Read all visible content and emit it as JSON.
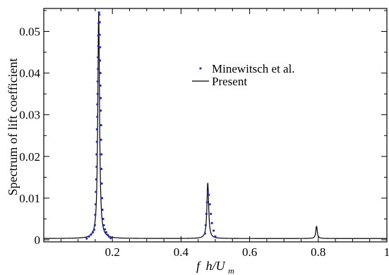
{
  "chart_data": {
    "type": "line",
    "xlabel": {
      "f": "f",
      "h": "h/U",
      "sub": "m"
    },
    "ylabel": "Spectrum of lift coefficient",
    "xlim": [
      0.0,
      1.0
    ],
    "ylim": [
      -0.0005,
      0.0555
    ],
    "x_ticks": [
      0.2,
      0.4,
      0.6,
      0.8,
      1.0
    ],
    "x_tick_labels": [
      "0.2",
      "0.4",
      "0.6",
      "0.8",
      "1"
    ],
    "y_ticks": [
      0,
      0.01,
      0.02,
      0.03,
      0.04,
      0.05
    ],
    "y_tick_labels": [
      "0",
      "0.01",
      "0.02",
      "0.03",
      "0.04",
      "0.05"
    ],
    "grid": false,
    "legend_position": "upper-center-right",
    "series": [
      {
        "name": "Minewitsch et al.",
        "style": "dots",
        "color": "#1f2bd6",
        "points": [
          [
            0.125,
            0.0003
          ],
          [
            0.132,
            0.0008
          ],
          [
            0.138,
            0.0013
          ],
          [
            0.143,
            0.0018
          ],
          [
            0.147,
            0.0024
          ],
          [
            0.149,
            0.0035
          ],
          [
            0.15,
            0.006
          ],
          [
            0.151,
            0.0085
          ],
          [
            0.152,
            0.0115
          ],
          [
            0.153,
            0.0145
          ],
          [
            0.154,
            0.0175
          ],
          [
            0.154,
            0.0205
          ],
          [
            0.155,
            0.0235
          ],
          [
            0.155,
            0.0265
          ],
          [
            0.156,
            0.0295
          ],
          [
            0.156,
            0.0325
          ],
          [
            0.157,
            0.035
          ],
          [
            0.157,
            0.038
          ],
          [
            0.158,
            0.041
          ],
          [
            0.158,
            0.0438
          ],
          [
            0.159,
            0.0465
          ],
          [
            0.159,
            0.049
          ],
          [
            0.16,
            0.052
          ],
          [
            0.161,
            0.0545
          ],
          [
            0.162,
            0.054
          ],
          [
            0.163,
            0.0522
          ],
          [
            0.163,
            0.0492
          ],
          [
            0.164,
            0.0462
          ],
          [
            0.164,
            0.043
          ],
          [
            0.165,
            0.04
          ],
          [
            0.165,
            0.037
          ],
          [
            0.166,
            0.034
          ],
          [
            0.166,
            0.031
          ],
          [
            0.167,
            0.0275
          ],
          [
            0.167,
            0.024
          ],
          [
            0.168,
            0.0205
          ],
          [
            0.168,
            0.017
          ],
          [
            0.169,
            0.0135
          ],
          [
            0.17,
            0.01
          ],
          [
            0.171,
            0.0072
          ],
          [
            0.173,
            0.005
          ],
          [
            0.175,
            0.0035
          ],
          [
            0.178,
            0.0025
          ],
          [
            0.182,
            0.0018
          ],
          [
            0.186,
            0.0012
          ],
          [
            0.19,
            0.0008
          ],
          [
            0.195,
            0.0004
          ],
          [
            0.47,
            0.0015
          ],
          [
            0.472,
            0.0035
          ],
          [
            0.474,
            0.0062
          ],
          [
            0.476,
            0.009
          ],
          [
            0.478,
            0.0115
          ],
          [
            0.481,
            0.0108
          ],
          [
            0.484,
            0.0085
          ],
          [
            0.487,
            0.0062
          ],
          [
            0.49,
            0.004
          ],
          [
            0.495,
            0.0022
          ],
          [
            0.5,
            0.0008
          ]
        ]
      },
      {
        "name": "Present",
        "style": "line",
        "color": "#000000",
        "peaks": [
          {
            "x": 0.16,
            "y": 0.0548,
            "width": 0.006
          },
          {
            "x": 0.478,
            "y": 0.0138,
            "width": 0.006
          },
          {
            "x": 0.795,
            "y": 0.0033,
            "width": 0.005
          }
        ],
        "baseline": 0.0003
      }
    ]
  },
  "legend": {
    "items": [
      {
        "label": "Minewitsch et al.",
        "marker": "dot"
      },
      {
        "label": "Present",
        "marker": "line"
      }
    ]
  }
}
